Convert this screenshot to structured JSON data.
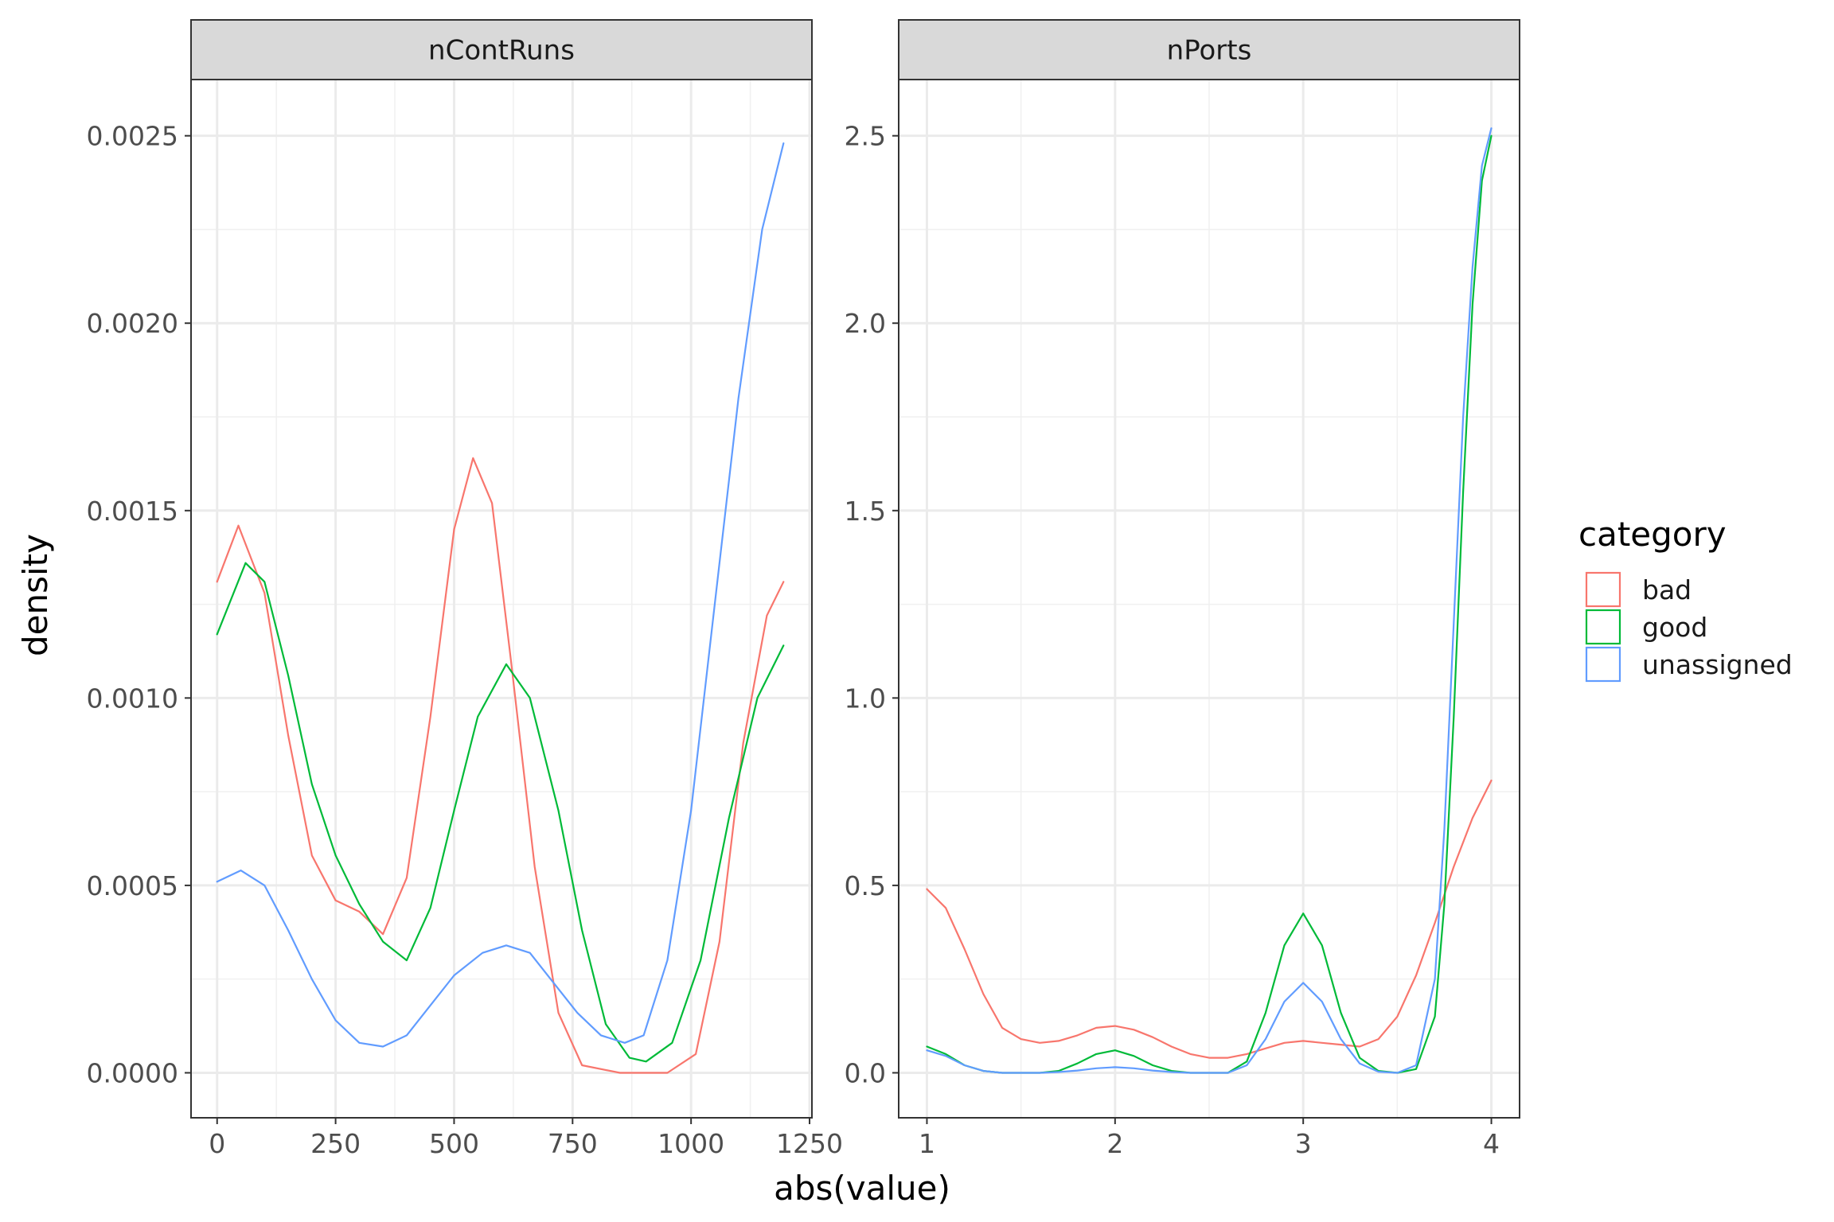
{
  "chart_data": {
    "type": "line",
    "xlabel": "abs(value)",
    "ylabel": "density",
    "grid": true,
    "legend": {
      "title": "category",
      "placement": "right",
      "entries": [
        {
          "name": "bad",
          "color": "#F8766D"
        },
        {
          "name": "good",
          "color": "#00BA38"
        },
        {
          "name": "unassigned",
          "color": "#619CFF"
        }
      ]
    },
    "facets": [
      {
        "title": "nContRuns",
        "xlim": [
          -55,
          1255
        ],
        "ylim": [
          -0.00012,
          0.00265
        ],
        "x_ticks": [
          0,
          250,
          500,
          750,
          1000,
          1250
        ],
        "x_tick_labels": [
          "0",
          "250",
          "500",
          "750",
          "1000",
          "1250"
        ],
        "y_ticks": [
          0,
          0.0005,
          0.001,
          0.0015,
          0.002,
          0.0025
        ],
        "y_tick_labels": [
          "0.0000",
          "0.0005",
          "0.0010",
          "0.0015",
          "0.0020",
          "0.0025"
        ],
        "series": [
          {
            "name": "bad",
            "points": [
              [
                0,
                0.00131
              ],
              [
                45,
                0.00146
              ],
              [
                100,
                0.00128
              ],
              [
                150,
                0.0009
              ],
              [
                200,
                0.00058
              ],
              [
                250,
                0.00046
              ],
              [
                300,
                0.00043
              ],
              [
                350,
                0.00037
              ],
              [
                400,
                0.00052
              ],
              [
                450,
                0.00095
              ],
              [
                500,
                0.00145
              ],
              [
                540,
                0.00164
              ],
              [
                580,
                0.00152
              ],
              [
                620,
                0.0011
              ],
              [
                670,
                0.00055
              ],
              [
                720,
                0.00016
              ],
              [
                770,
                2e-05
              ],
              [
                850,
                0.0
              ],
              [
                950,
                0.0
              ],
              [
                1010,
                5e-05
              ],
              [
                1060,
                0.00035
              ],
              [
                1110,
                0.00088
              ],
              [
                1160,
                0.00122
              ],
              [
                1195,
                0.00131
              ]
            ]
          },
          {
            "name": "good",
            "points": [
              [
                0,
                0.00117
              ],
              [
                60,
                0.00136
              ],
              [
                100,
                0.00131
              ],
              [
                150,
                0.00106
              ],
              [
                200,
                0.00077
              ],
              [
                250,
                0.00058
              ],
              [
                300,
                0.00045
              ],
              [
                350,
                0.00035
              ],
              [
                400,
                0.0003
              ],
              [
                450,
                0.00044
              ],
              [
                500,
                0.0007
              ],
              [
                550,
                0.00095
              ],
              [
                610,
                0.00109
              ],
              [
                660,
                0.001
              ],
              [
                720,
                0.0007
              ],
              [
                770,
                0.00038
              ],
              [
                820,
                0.00013
              ],
              [
                870,
                4e-05
              ],
              [
                905,
                3e-05
              ],
              [
                960,
                8e-05
              ],
              [
                1020,
                0.0003
              ],
              [
                1080,
                0.00068
              ],
              [
                1140,
                0.001
              ],
              [
                1195,
                0.00114
              ]
            ]
          },
          {
            "name": "unassigned",
            "points": [
              [
                0,
                0.00051
              ],
              [
                50,
                0.00054
              ],
              [
                100,
                0.0005
              ],
              [
                150,
                0.00038
              ],
              [
                200,
                0.00025
              ],
              [
                250,
                0.00014
              ],
              [
                300,
                8e-05
              ],
              [
                350,
                7e-05
              ],
              [
                400,
                0.0001
              ],
              [
                450,
                0.00018
              ],
              [
                500,
                0.00026
              ],
              [
                560,
                0.00032
              ],
              [
                610,
                0.00034
              ],
              [
                660,
                0.00032
              ],
              [
                710,
                0.00024
              ],
              [
                760,
                0.00016
              ],
              [
                810,
                0.0001
              ],
              [
                860,
                8e-05
              ],
              [
                900,
                0.0001
              ],
              [
                950,
                0.0003
              ],
              [
                1000,
                0.0007
              ],
              [
                1050,
                0.00125
              ],
              [
                1100,
                0.0018
              ],
              [
                1150,
                0.00225
              ],
              [
                1195,
                0.00248
              ]
            ]
          }
        ]
      },
      {
        "title": "nPorts",
        "xlim": [
          0.85,
          4.15
        ],
        "ylim": [
          -0.12,
          2.65
        ],
        "x_ticks": [
          1,
          2,
          3,
          4
        ],
        "x_tick_labels": [
          "1",
          "2",
          "3",
          "4"
        ],
        "y_ticks": [
          0,
          0.5,
          1,
          1.5,
          2,
          2.5
        ],
        "y_tick_labels": [
          "0.0",
          "0.5",
          "1.0",
          "1.5",
          "2.0",
          "2.5"
        ],
        "series": [
          {
            "name": "bad",
            "points": [
              [
                1,
                0.49
              ],
              [
                1.1,
                0.44
              ],
              [
                1.2,
                0.33
              ],
              [
                1.3,
                0.21
              ],
              [
                1.4,
                0.12
              ],
              [
                1.5,
                0.09
              ],
              [
                1.6,
                0.08
              ],
              [
                1.7,
                0.085
              ],
              [
                1.8,
                0.1
              ],
              [
                1.9,
                0.12
              ],
              [
                2.0,
                0.125
              ],
              [
                2.1,
                0.115
              ],
              [
                2.2,
                0.095
              ],
              [
                2.3,
                0.07
              ],
              [
                2.4,
                0.05
              ],
              [
                2.5,
                0.04
              ],
              [
                2.6,
                0.04
              ],
              [
                2.7,
                0.05
              ],
              [
                2.8,
                0.065
              ],
              [
                2.9,
                0.08
              ],
              [
                3.0,
                0.085
              ],
              [
                3.1,
                0.08
              ],
              [
                3.2,
                0.075
              ],
              [
                3.3,
                0.07
              ],
              [
                3.4,
                0.09
              ],
              [
                3.5,
                0.15
              ],
              [
                3.6,
                0.26
              ],
              [
                3.7,
                0.4
              ],
              [
                3.8,
                0.55
              ],
              [
                3.9,
                0.68
              ],
              [
                4.0,
                0.78
              ]
            ]
          },
          {
            "name": "good",
            "points": [
              [
                1,
                0.07
              ],
              [
                1.1,
                0.05
              ],
              [
                1.2,
                0.02
              ],
              [
                1.3,
                0.005
              ],
              [
                1.4,
                0.0
              ],
              [
                1.6,
                0.0
              ],
              [
                1.7,
                0.005
              ],
              [
                1.8,
                0.025
              ],
              [
                1.9,
                0.05
              ],
              [
                2.0,
                0.06
              ],
              [
                2.1,
                0.045
              ],
              [
                2.2,
                0.02
              ],
              [
                2.3,
                0.005
              ],
              [
                2.4,
                0.0
              ],
              [
                2.6,
                0.0
              ],
              [
                2.7,
                0.03
              ],
              [
                2.8,
                0.16
              ],
              [
                2.9,
                0.34
              ],
              [
                3.0,
                0.425
              ],
              [
                3.1,
                0.34
              ],
              [
                3.2,
                0.16
              ],
              [
                3.3,
                0.04
              ],
              [
                3.4,
                0.005
              ],
              [
                3.5,
                0.0
              ],
              [
                3.6,
                0.01
              ],
              [
                3.7,
                0.15
              ],
              [
                3.75,
                0.45
              ],
              [
                3.8,
                0.95
              ],
              [
                3.85,
                1.55
              ],
              [
                3.9,
                2.05
              ],
              [
                3.95,
                2.38
              ],
              [
                4.0,
                2.5
              ]
            ]
          },
          {
            "name": "unassigned",
            "points": [
              [
                1,
                0.06
              ],
              [
                1.1,
                0.045
              ],
              [
                1.2,
                0.02
              ],
              [
                1.3,
                0.005
              ],
              [
                1.4,
                0.0
              ],
              [
                1.6,
                0.0
              ],
              [
                1.7,
                0.002
              ],
              [
                1.8,
                0.006
              ],
              [
                1.9,
                0.012
              ],
              [
                2.0,
                0.015
              ],
              [
                2.1,
                0.012
              ],
              [
                2.2,
                0.006
              ],
              [
                2.3,
                0.002
              ],
              [
                2.4,
                0.0
              ],
              [
                2.6,
                0.0
              ],
              [
                2.7,
                0.02
              ],
              [
                2.8,
                0.09
              ],
              [
                2.9,
                0.19
              ],
              [
                3.0,
                0.24
              ],
              [
                3.1,
                0.19
              ],
              [
                3.2,
                0.09
              ],
              [
                3.3,
                0.025
              ],
              [
                3.4,
                0.003
              ],
              [
                3.5,
                0.0
              ],
              [
                3.6,
                0.02
              ],
              [
                3.7,
                0.25
              ],
              [
                3.75,
                0.65
              ],
              [
                3.8,
                1.2
              ],
              [
                3.85,
                1.75
              ],
              [
                3.9,
                2.15
              ],
              [
                3.95,
                2.42
              ],
              [
                4.0,
                2.52
              ]
            ]
          }
        ]
      }
    ]
  }
}
